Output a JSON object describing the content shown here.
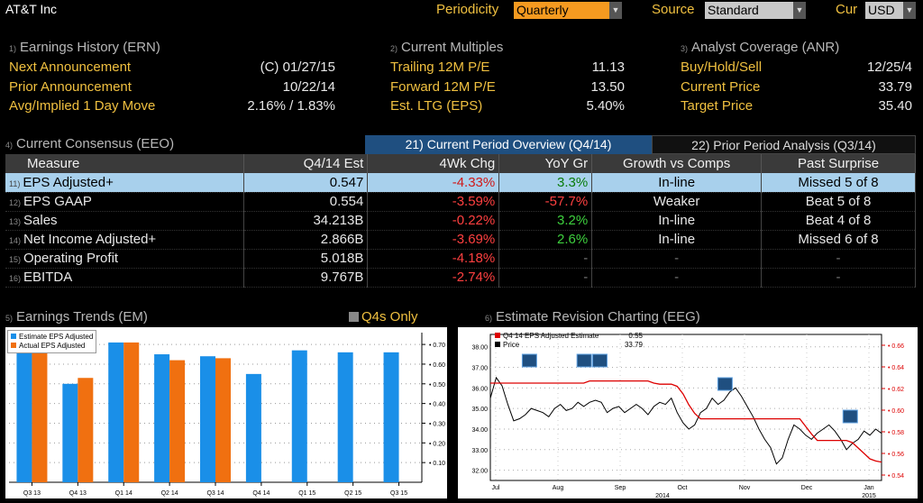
{
  "header": {
    "title": "AT&T Inc",
    "periodicity_label": "Periodicity",
    "periodicity_value": "Quarterly",
    "source_label": "Source",
    "source_value": "Standard",
    "cur_label": "Cur",
    "cur_value": "USD"
  },
  "earnings_history": {
    "num": "1)",
    "title": "Earnings History (ERN)",
    "rows": [
      {
        "label": "Next Announcement",
        "value": "(C)  01/27/15"
      },
      {
        "label": "Prior Announcement",
        "value": "10/22/14"
      },
      {
        "label": "Avg/Implied 1 Day Move",
        "value": "2.16% / 1.83%"
      }
    ]
  },
  "current_multiples": {
    "num": "2)",
    "title": "Current Multiples",
    "rows": [
      {
        "label": "Trailing 12M P/E",
        "value": "11.13"
      },
      {
        "label": "Forward 12M P/E",
        "value": "13.50"
      },
      {
        "label": "Est. LTG (EPS)",
        "value": "5.40%"
      }
    ]
  },
  "analyst_coverage": {
    "num": "3)",
    "title": "Analyst Coverage (ANR)",
    "rows": [
      {
        "label": "Buy/Hold/Sell",
        "value": "12/25/4"
      },
      {
        "label": "Current Price",
        "value": "33.79"
      },
      {
        "label": "Target Price",
        "value": "35.40"
      }
    ]
  },
  "consensus": {
    "num": "4)",
    "title": "Current Consensus (EEO)",
    "tab_current": "21) Current Period Overview (Q4/14)",
    "tab_prior": "22) Prior Period Analysis (Q3/14)",
    "columns": [
      "Measure",
      "Q4/14 Est",
      "4Wk Chg",
      "YoY Gr",
      "Growth vs Comps",
      "Past Surprise"
    ],
    "rows": [
      {
        "num": "11)",
        "measure": "EPS Adjusted+",
        "est": "0.547",
        "chg": "-4.33%",
        "yoy": "3.3%",
        "comps": "In-line",
        "surprise": "Missed 5 of 8"
      },
      {
        "num": "12)",
        "measure": "EPS GAAP",
        "est": "0.554",
        "chg": "-3.59%",
        "yoy": "-57.7%",
        "comps": "Weaker",
        "surprise": "Beat 5 of 8"
      },
      {
        "num": "13)",
        "measure": "Sales",
        "est": "34.213B",
        "chg": "-0.22%",
        "yoy": "3.2%",
        "comps": "In-line",
        "surprise": "Beat 4 of 8"
      },
      {
        "num": "14)",
        "measure": "Net Income Adjusted+",
        "est": "2.866B",
        "chg": "-3.69%",
        "yoy": "2.6%",
        "comps": "In-line",
        "surprise": "Missed 6 of 8"
      },
      {
        "num": "15)",
        "measure": "Operating Profit",
        "est": "5.018B",
        "chg": "-4.18%",
        "yoy": "-",
        "comps": "-",
        "surprise": "-"
      },
      {
        "num": "16)",
        "measure": "EBITDA",
        "est": "9.767B",
        "chg": "-2.74%",
        "yoy": "-",
        "comps": "-",
        "surprise": "-"
      }
    ]
  },
  "trends": {
    "num": "5)",
    "title": "Earnings Trends (EM)",
    "q4_only": "Q4s Only"
  },
  "revision": {
    "num": "6)",
    "title": "Estimate Revision Charting (EEG)"
  },
  "colors": {
    "accent": "#f0c040",
    "estimate_blue": "#1a8fe8",
    "actual_orange": "#f07010",
    "revision_red": "#dd0000",
    "tab_active": "#1f4f80"
  },
  "chart_data": [
    {
      "type": "bar",
      "categories": [
        "Q3 13",
        "Q4 13",
        "Q1 14",
        "Q2 14",
        "Q3 14",
        "Q4 14",
        "Q1 15",
        "Q2 15",
        "Q3 15"
      ],
      "series": [
        {
          "name": "Estimate EPS Adjusted",
          "values": [
            0.67,
            0.5,
            0.71,
            0.65,
            0.64,
            0.55,
            0.67,
            0.66,
            0.66
          ]
        },
        {
          "name": "Actual EPS Adjusted",
          "values": [
            0.66,
            0.53,
            0.71,
            0.62,
            0.63,
            null,
            null,
            null,
            null
          ]
        }
      ],
      "yticks": [
        "0.10",
        "0.20",
        "0.30",
        "0.40",
        "0.50",
        "0.60",
        "0.70"
      ],
      "ylim": [
        0,
        0.76
      ],
      "legend": "top-left"
    },
    {
      "type": "line",
      "x_labels": [
        "Jul",
        "Aug",
        "Sep",
        "Oct",
        "Nov",
        "Dec",
        "Jan"
      ],
      "year_labels": [
        "2014",
        "2015"
      ],
      "series": [
        {
          "name": "Q4 14 EPS Adjusted Estimate",
          "last": "0.55",
          "axis": "right",
          "values": [
            0.625,
            0.625,
            0.625,
            0.625,
            0.625,
            0.625,
            0.625,
            0.625,
            0.625,
            0.625,
            0.625,
            0.625,
            0.625,
            0.625,
            0.625,
            0.625,
            0.625,
            0.627,
            0.627,
            0.627,
            0.627,
            0.627,
            0.627,
            0.627,
            0.627,
            0.627,
            0.627,
            0.627,
            0.625,
            0.624,
            0.624,
            0.624,
            0.622,
            0.615,
            0.605,
            0.597,
            0.592,
            0.592,
            0.592,
            0.592,
            0.592,
            0.592,
            0.592,
            0.592,
            0.592,
            0.592,
            0.592,
            0.592,
            0.592,
            0.592,
            0.592,
            0.592,
            0.592,
            0.592,
            0.585,
            0.578,
            0.572,
            0.572,
            0.572,
            0.572,
            0.572,
            0.572,
            0.57,
            0.565,
            0.56,
            0.555,
            0.553,
            0.552
          ]
        },
        {
          "name": "Price",
          "last": "33.79",
          "axis": "left",
          "values": [
            35.5,
            36.5,
            36.1,
            35.2,
            34.4,
            34.5,
            34.7,
            35.0,
            34.9,
            34.8,
            34.6,
            35.0,
            35.2,
            34.9,
            35.0,
            35.3,
            35.1,
            35.3,
            35.4,
            35.3,
            34.8,
            35.0,
            35.1,
            34.8,
            35.0,
            35.2,
            35.0,
            34.7,
            35.1,
            35.3,
            35.2,
            35.5,
            34.8,
            34.3,
            34.0,
            34.2,
            34.8,
            35.0,
            35.5,
            35.2,
            35.4,
            35.8,
            36.0,
            35.6,
            35.1,
            34.6,
            34.0,
            33.5,
            33.1,
            32.3,
            32.6,
            33.5,
            34.2,
            34.0,
            33.7,
            33.5,
            33.8,
            34.0,
            34.2,
            33.9,
            33.5,
            33.0,
            33.3,
            33.5,
            33.9,
            33.7,
            34.0,
            33.79
          ]
        }
      ],
      "left_ticks": [
        "32.00",
        "33.00",
        "34.00",
        "35.00",
        "36.00",
        "37.00",
        "38.00"
      ],
      "left_lim": [
        31.5,
        38.6
      ],
      "right_ticks": [
        "0.54",
        "0.56",
        "0.58",
        "0.60",
        "0.62",
        "0.64",
        "0.66"
      ],
      "right_lim": [
        0.535,
        0.67
      ],
      "legend": "top-left"
    }
  ]
}
